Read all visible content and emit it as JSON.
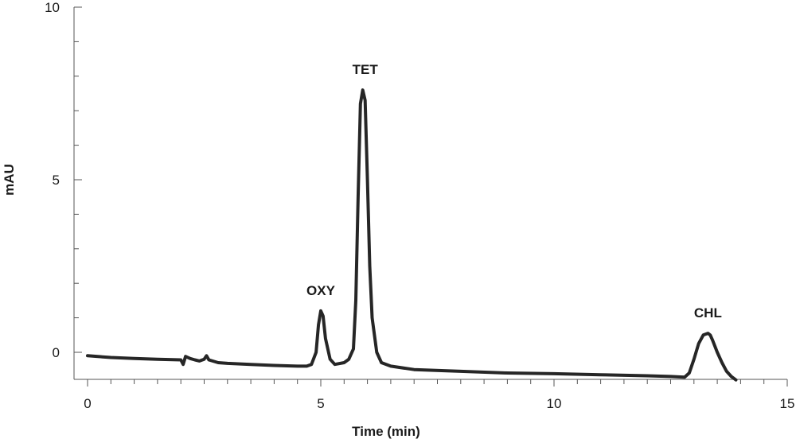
{
  "chart_data": {
    "type": "line",
    "title": "",
    "xlabel": "Time (min)",
    "ylabel": "mAU",
    "xlim": [
      0,
      15
    ],
    "ylim": [
      -0.8,
      10
    ],
    "x_ticks": [
      0,
      5,
      10,
      15
    ],
    "y_ticks": [
      0,
      5,
      10
    ],
    "grid": false,
    "line_color": "#262626",
    "annotations": [
      {
        "text": "OXY",
        "x": 5.0,
        "y": 1.2
      },
      {
        "text": "TET",
        "x": 5.95,
        "y": 7.6
      },
      {
        "text": "CHL",
        "x": 13.3,
        "y": 0.55
      }
    ],
    "series": [
      {
        "x": [
          0.0,
          0.5,
          1.0,
          1.5,
          2.0,
          2.05,
          2.1,
          2.2,
          2.3,
          2.4,
          2.5,
          2.55,
          2.6,
          2.8,
          3.0,
          3.5,
          4.0,
          4.5,
          4.7,
          4.8,
          4.9,
          4.95,
          5.0,
          5.05,
          5.1,
          5.2,
          5.3,
          5.5,
          5.6,
          5.7,
          5.75,
          5.8,
          5.85,
          5.9,
          5.95,
          6.0,
          6.05,
          6.1,
          6.2,
          6.3,
          6.5,
          7.0,
          8.0,
          9.0,
          10.0,
          11.0,
          12.0,
          12.5,
          12.8,
          12.9,
          13.0,
          13.1,
          13.2,
          13.3,
          13.35,
          13.4,
          13.5,
          13.6,
          13.7,
          13.8,
          13.9
        ],
        "y": [
          -0.1,
          -0.15,
          -0.18,
          -0.2,
          -0.22,
          -0.35,
          -0.12,
          -0.18,
          -0.22,
          -0.25,
          -0.2,
          -0.1,
          -0.22,
          -0.3,
          -0.32,
          -0.35,
          -0.38,
          -0.4,
          -0.4,
          -0.35,
          0.0,
          0.8,
          1.2,
          1.05,
          0.4,
          -0.2,
          -0.35,
          -0.3,
          -0.2,
          0.1,
          1.5,
          4.5,
          7.2,
          7.6,
          7.3,
          5.0,
          2.5,
          1.0,
          0.0,
          -0.3,
          -0.4,
          -0.5,
          -0.55,
          -0.6,
          -0.62,
          -0.65,
          -0.68,
          -0.7,
          -0.72,
          -0.6,
          -0.2,
          0.25,
          0.5,
          0.55,
          0.5,
          0.35,
          0.0,
          -0.3,
          -0.55,
          -0.7,
          -0.8
        ]
      }
    ]
  }
}
